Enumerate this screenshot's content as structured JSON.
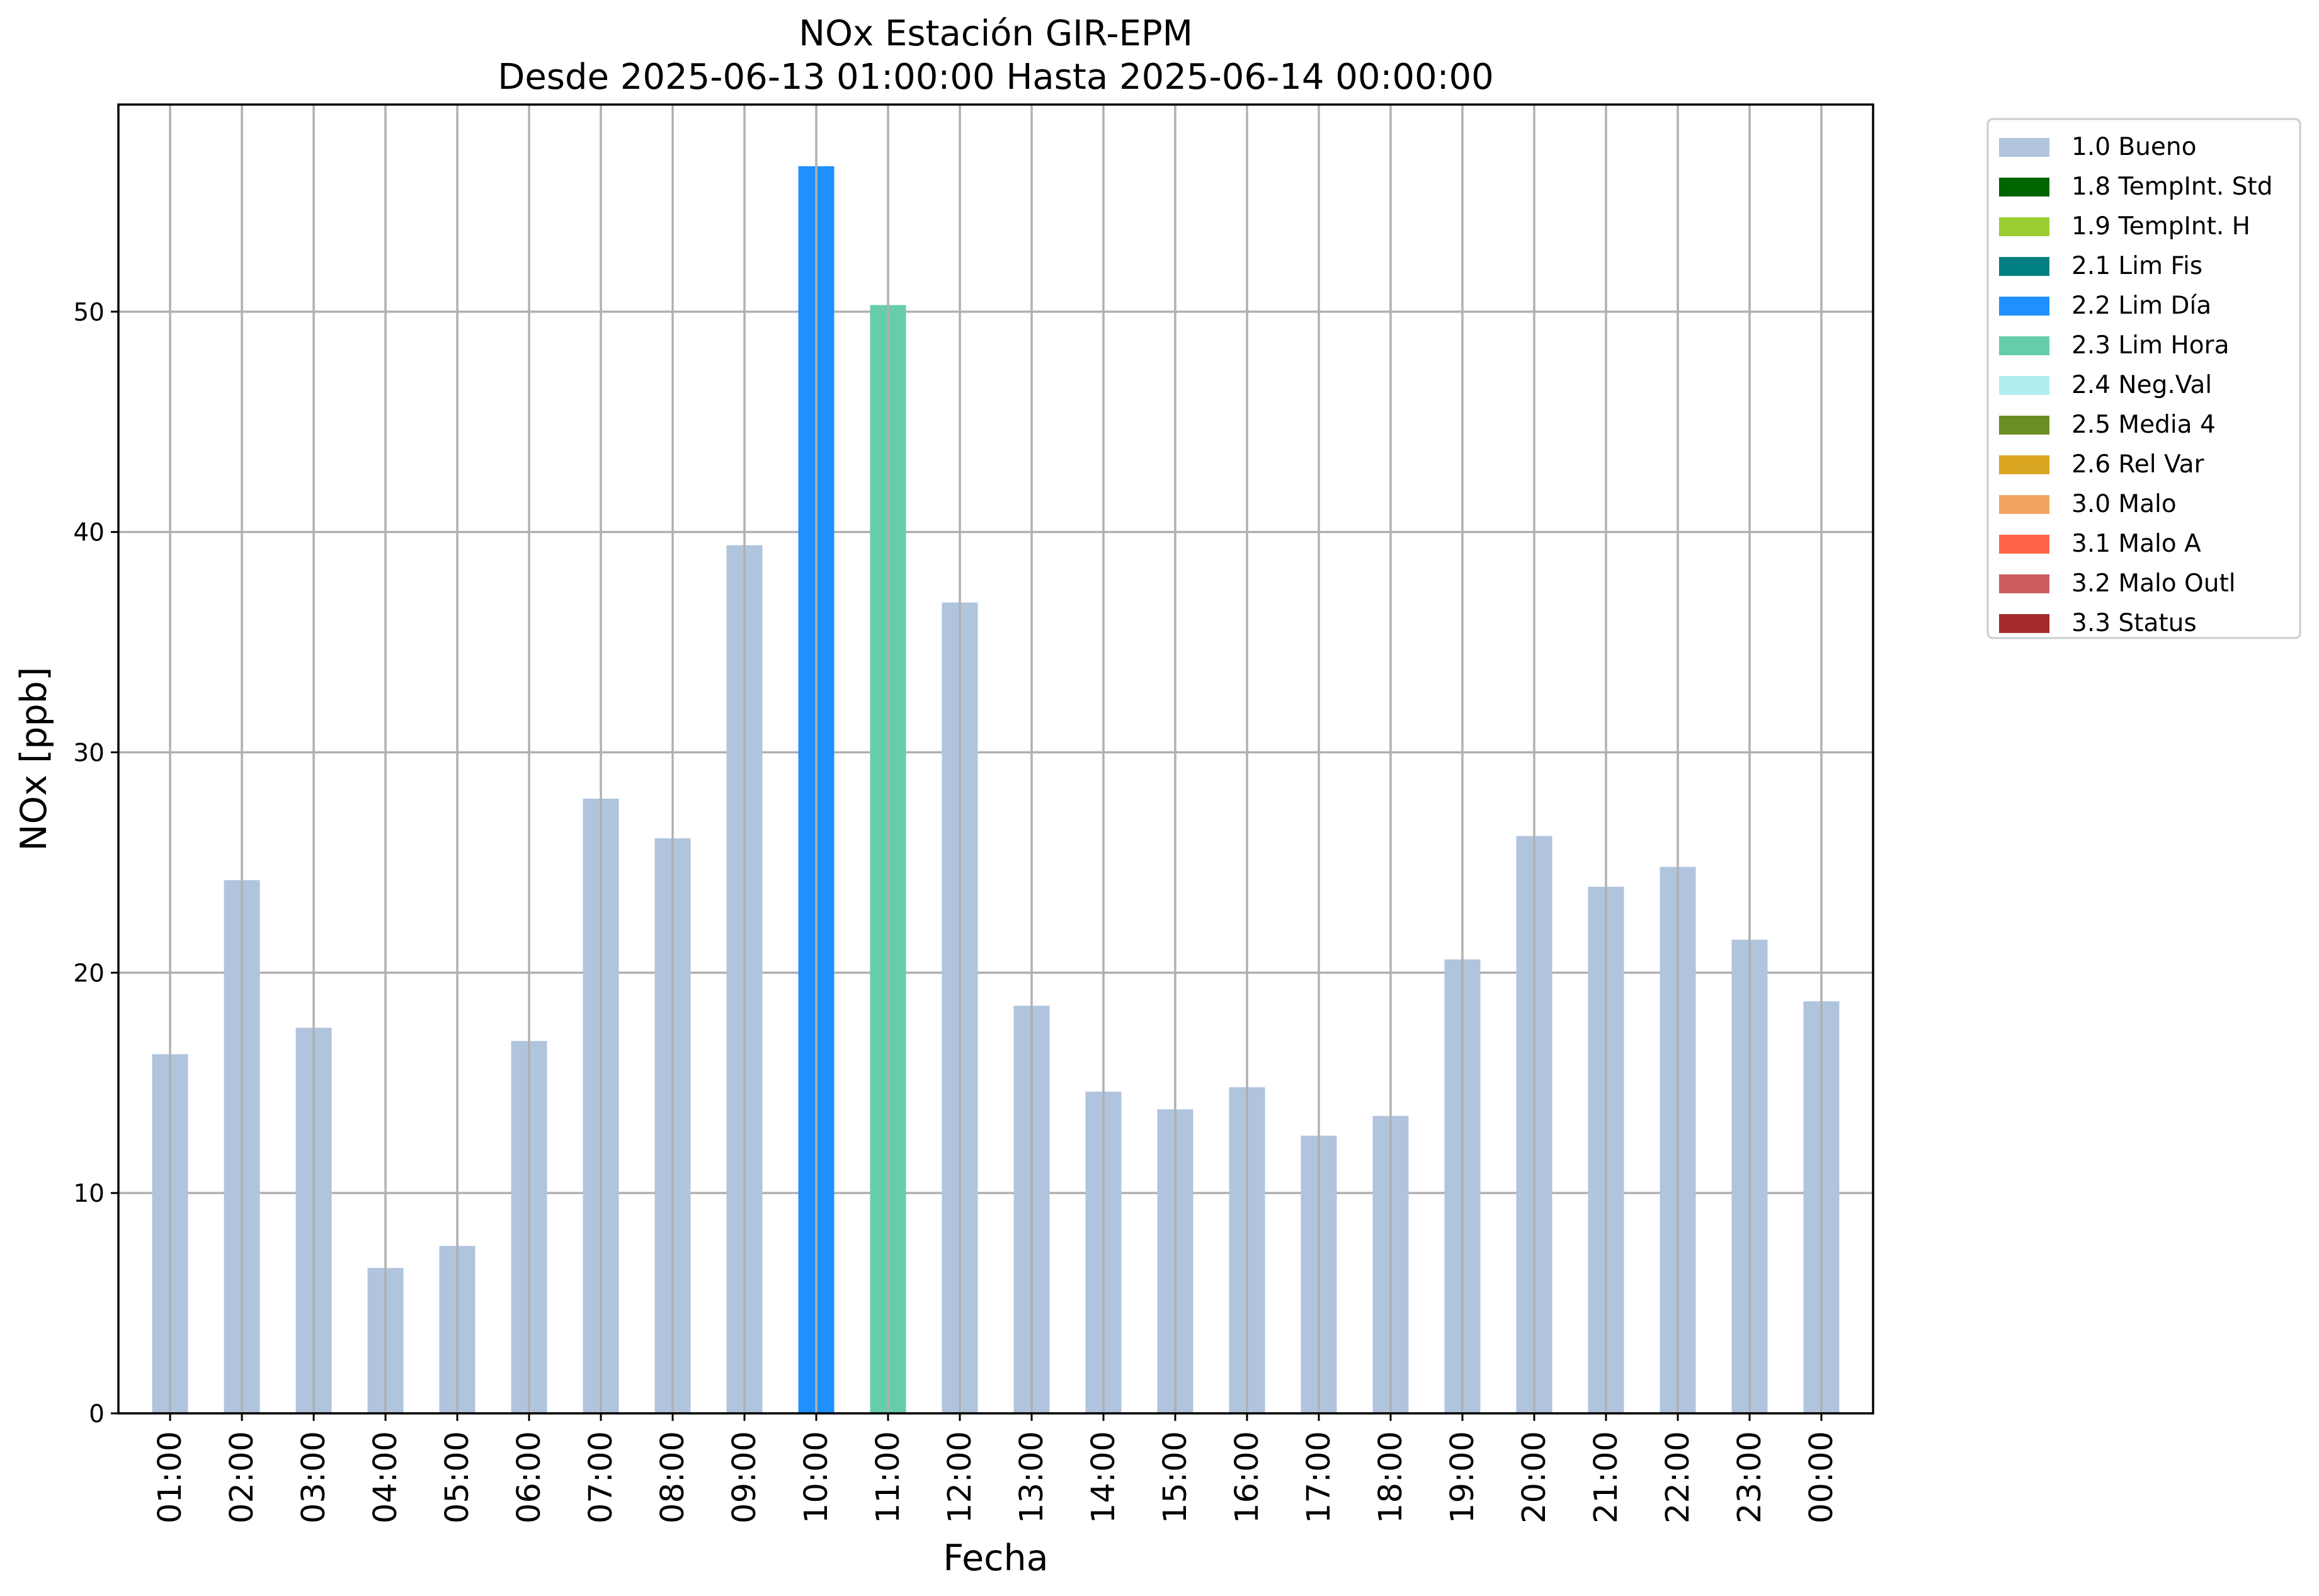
{
  "chart_data": {
    "type": "bar",
    "title": "NOx Estación GIR-EPM",
    "subtitle": "Desde 2025-06-13 01:00:00 Hasta 2025-06-14 00:00:00",
    "xlabel": "Fecha",
    "ylabel": "NOx [ppb]",
    "ylim": [
      0,
      59.4
    ],
    "yticks": [
      0,
      10,
      20,
      30,
      40,
      50
    ],
    "grid": true,
    "legend_position": "outside-top-right",
    "categories": [
      "01:00",
      "02:00",
      "03:00",
      "04:00",
      "05:00",
      "06:00",
      "07:00",
      "08:00",
      "09:00",
      "10:00",
      "11:00",
      "12:00",
      "13:00",
      "14:00",
      "15:00",
      "16:00",
      "17:00",
      "18:00",
      "19:00",
      "20:00",
      "21:00",
      "22:00",
      "23:00",
      "00:00"
    ],
    "values": [
      16.3,
      24.2,
      17.5,
      6.6,
      7.6,
      16.9,
      27.9,
      26.1,
      39.4,
      56.6,
      50.3,
      36.8,
      18.5,
      14.6,
      13.8,
      14.8,
      12.6,
      13.5,
      20.6,
      26.2,
      23.9,
      24.8,
      21.5,
      18.7
    ],
    "flags": [
      "1.0 Bueno",
      "1.0 Bueno",
      "1.0 Bueno",
      "1.0 Bueno",
      "1.0 Bueno",
      "1.0 Bueno",
      "1.0 Bueno",
      "1.0 Bueno",
      "1.0 Bueno",
      "2.2 Lim Día",
      "2.3 Lim Hora",
      "1.0 Bueno",
      "1.0 Bueno",
      "1.0 Bueno",
      "1.0 Bueno",
      "1.0 Bueno",
      "1.0 Bueno",
      "1.0 Bueno",
      "1.0 Bueno",
      "1.0 Bueno",
      "1.0 Bueno",
      "1.0 Bueno",
      "1.0 Bueno",
      "1.0 Bueno"
    ],
    "legend": [
      {
        "label": "1.0 Bueno",
        "color": "#b0c4de"
      },
      {
        "label": "1.8 TempInt. Std",
        "color": "#006400"
      },
      {
        "label": "1.9 TempInt. H",
        "color": "#9acd32"
      },
      {
        "label": "2.1 Lim Fis",
        "color": "#008080"
      },
      {
        "label": "2.2 Lim Día",
        "color": "#1e90ff"
      },
      {
        "label": "2.3 Lim Hora",
        "color": "#66cdaa"
      },
      {
        "label": "2.4 Neg.Val",
        "color": "#afeeee"
      },
      {
        "label": "2.5 Media 4",
        "color": "#6b8e23"
      },
      {
        "label": "2.6 Rel Var",
        "color": "#daa520"
      },
      {
        "label": "3.0 Malo",
        "color": "#f4a460"
      },
      {
        "label": "3.1 Malo A",
        "color": "#ff6347"
      },
      {
        "label": "3.2 Malo Outl",
        "color": "#cd5c5c"
      },
      {
        "label": "3.3 Status",
        "color": "#a52a2a"
      }
    ]
  }
}
